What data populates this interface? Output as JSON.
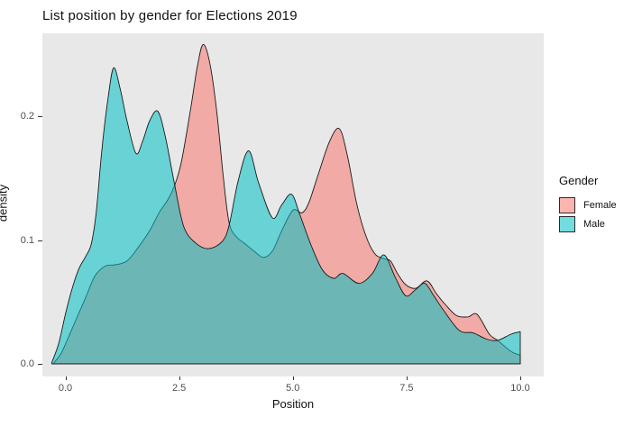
{
  "chart_data": {
    "type": "area",
    "title": "List position by gender for Elections 2019",
    "xlabel": "Position",
    "ylabel": "density",
    "xlim": [
      -0.5,
      10.5
    ],
    "ylim": [
      -0.01,
      0.267
    ],
    "xticks": [
      0.0,
      2.5,
      5.0,
      7.5,
      10.0
    ],
    "xtick_labels": [
      "0.0",
      "2.5",
      "5.0",
      "7.5",
      "10.0"
    ],
    "yticks": [
      0.0,
      0.1,
      0.2
    ],
    "ytick_labels": [
      "0.0",
      "0.1",
      "0.2"
    ],
    "grid": false,
    "panel_bg": "#E8E8E8",
    "outline_color": "#1A1A1A",
    "legend_position": "right",
    "series": [
      {
        "name": "Female",
        "color": "#F8766D",
        "fill_alpha": 0.55,
        "points": [
          [
            -0.25,
            0.001
          ],
          [
            -0.1,
            0.008
          ],
          [
            0.05,
            0.02
          ],
          [
            0.25,
            0.037
          ],
          [
            0.45,
            0.054
          ],
          [
            0.65,
            0.071
          ],
          [
            0.88,
            0.079
          ],
          [
            1.1,
            0.08
          ],
          [
            1.35,
            0.083
          ],
          [
            1.6,
            0.094
          ],
          [
            1.86,
            0.108
          ],
          [
            2.06,
            0.122
          ],
          [
            2.26,
            0.133
          ],
          [
            2.4,
            0.144
          ],
          [
            2.55,
            0.163
          ],
          [
            2.75,
            0.205
          ],
          [
            2.9,
            0.24
          ],
          [
            3.03,
            0.258
          ],
          [
            3.18,
            0.242
          ],
          [
            3.33,
            0.203
          ],
          [
            3.48,
            0.148
          ],
          [
            3.6,
            0.114
          ],
          [
            3.75,
            0.103
          ],
          [
            3.95,
            0.097
          ],
          [
            4.15,
            0.091
          ],
          [
            4.35,
            0.086
          ],
          [
            4.55,
            0.091
          ],
          [
            4.75,
            0.107
          ],
          [
            5.0,
            0.124
          ],
          [
            5.2,
            0.122
          ],
          [
            5.35,
            0.13
          ],
          [
            5.55,
            0.152
          ],
          [
            5.8,
            0.179
          ],
          [
            6.02,
            0.19
          ],
          [
            6.2,
            0.168
          ],
          [
            6.4,
            0.13
          ],
          [
            6.6,
            0.104
          ],
          [
            6.8,
            0.089
          ],
          [
            7.0,
            0.085
          ],
          [
            7.15,
            0.083
          ],
          [
            7.3,
            0.073
          ],
          [
            7.48,
            0.064
          ],
          [
            7.7,
            0.061
          ],
          [
            7.95,
            0.067
          ],
          [
            8.15,
            0.057
          ],
          [
            8.35,
            0.048
          ],
          [
            8.6,
            0.039
          ],
          [
            8.85,
            0.038
          ],
          [
            9.05,
            0.04
          ],
          [
            9.32,
            0.024
          ],
          [
            9.5,
            0.019
          ],
          [
            9.8,
            0.01
          ],
          [
            10.0,
            0.007
          ]
        ]
      },
      {
        "name": "Male",
        "color": "#00BFC4",
        "fill_alpha": 0.55,
        "points": [
          [
            -0.3,
            0.001
          ],
          [
            -0.15,
            0.016
          ],
          [
            0.0,
            0.04
          ],
          [
            0.15,
            0.061
          ],
          [
            0.3,
            0.077
          ],
          [
            0.45,
            0.087
          ],
          [
            0.57,
            0.097
          ],
          [
            0.68,
            0.123
          ],
          [
            0.8,
            0.172
          ],
          [
            0.94,
            0.215
          ],
          [
            1.06,
            0.239
          ],
          [
            1.2,
            0.223
          ],
          [
            1.35,
            0.197
          ],
          [
            1.55,
            0.17
          ],
          [
            1.7,
            0.18
          ],
          [
            1.85,
            0.196
          ],
          [
            2.03,
            0.204
          ],
          [
            2.2,
            0.183
          ],
          [
            2.4,
            0.145
          ],
          [
            2.6,
            0.111
          ],
          [
            2.85,
            0.098
          ],
          [
            3.15,
            0.093
          ],
          [
            3.45,
            0.099
          ],
          [
            3.6,
            0.112
          ],
          [
            3.8,
            0.148
          ],
          [
            4.03,
            0.172
          ],
          [
            4.25,
            0.146
          ],
          [
            4.55,
            0.118
          ],
          [
            4.75,
            0.128
          ],
          [
            4.97,
            0.137
          ],
          [
            5.15,
            0.121
          ],
          [
            5.4,
            0.096
          ],
          [
            5.65,
            0.076
          ],
          [
            5.9,
            0.069
          ],
          [
            6.1,
            0.073
          ],
          [
            6.45,
            0.065
          ],
          [
            6.75,
            0.073
          ],
          [
            7.0,
            0.088
          ],
          [
            7.25,
            0.07
          ],
          [
            7.48,
            0.055
          ],
          [
            7.7,
            0.06
          ],
          [
            7.9,
            0.065
          ],
          [
            8.1,
            0.055
          ],
          [
            8.3,
            0.044
          ],
          [
            8.66,
            0.027
          ],
          [
            8.96,
            0.025
          ],
          [
            9.26,
            0.02
          ],
          [
            9.5,
            0.019
          ],
          [
            9.8,
            0.024
          ],
          [
            10.0,
            0.026
          ]
        ]
      }
    ]
  },
  "legend": {
    "title": "Gender",
    "entries": [
      {
        "label": "Female",
        "color": "#F8766D",
        "fill_alpha": 0.55
      },
      {
        "label": "Male",
        "color": "#00BFC4",
        "fill_alpha": 0.55
      }
    ]
  }
}
